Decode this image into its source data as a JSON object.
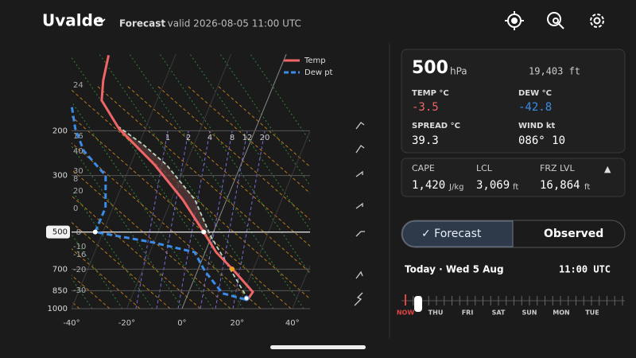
{
  "header": {
    "location": "Uvalde",
    "mode": "Forecast",
    "valid": "· valid 2026-08-05 11:00 UTC"
  },
  "chart_data": {
    "type": "skewt",
    "log_y": true,
    "xlim": [
      -40,
      46.4
    ],
    "ylim": [
      1000,
      100
    ],
    "xticks": [
      {
        "value": -40,
        "label": "-40°"
      },
      {
        "value": -20,
        "label": "-20°"
      },
      {
        "value": 0,
        "label": "0°"
      },
      {
        "value": 20,
        "label": "20°"
      },
      {
        "value": 40,
        "label": "40°"
      }
    ],
    "yticks": [
      1000,
      850,
      700,
      500,
      300,
      200
    ],
    "selected_level": 500,
    "mixing_ratio_labels": [
      "1",
      "2",
      "4",
      "8",
      "12",
      "20"
    ],
    "side_labels": [
      "24",
      "16",
      "40",
      "30",
      "8",
      "20",
      "0",
      "-8",
      "-10",
      "-16",
      "-20",
      "-30"
    ],
    "series": [
      {
        "name": "Temp",
        "color": "#f06565",
        "dash": false,
        "pressure": [
          917,
          860,
          713,
          600,
          500,
          373,
          272,
          196,
          152,
          127,
          101
        ],
        "values": [
          22.5,
          23.2,
          13.5,
          4.0,
          -3.5,
          -15.9,
          -31.3,
          -49.6,
          -60.0,
          -62.4,
          -64.2
        ]
      },
      {
        "name": "Dew pt",
        "color": "#3b8be8",
        "dash": true,
        "pressure": [
          920,
          870,
          713,
          600,
          547,
          500,
          401,
          300,
          240,
          196,
          158
        ],
        "values": [
          21.5,
          12.4,
          2.8,
          -3.8,
          -21.2,
          -42.8,
          -42.7,
          -47.4,
          -59.0,
          -65.4,
          -70.3
        ]
      }
    ],
    "parcel": {
      "color": "#b9d8c0",
      "pressure": [
        917,
        703,
        517,
        373,
        272,
        226,
        193
      ],
      "values": [
        22.5,
        11.8,
        -0.5,
        -11.5,
        -27.0,
        -38.6,
        -50.0
      ]
    }
  },
  "panel": {
    "level": "500",
    "level_unit": "hPa",
    "height": "19,403 ft",
    "temp_label": "TEMP °C",
    "temp": "-3.5",
    "dew_label": "DEW °C",
    "dew": "-42.8",
    "spread_label": "SPREAD °C",
    "spread": "39.3",
    "wind_label": "WIND kt",
    "wind": "086° 10"
  },
  "indices": {
    "cape_label": "CAPE",
    "cape": "1,420",
    "cape_unit": "J/kg",
    "lcl_label": "LCL",
    "lcl": "3,069",
    "lcl_unit": "ft",
    "frz_label": "FRZ LVL",
    "frz": "16,864",
    "frz_unit": "ft",
    "toggle": "▲"
  },
  "toggle": {
    "forecast": "✓  Forecast",
    "observed": "Observed"
  },
  "timeline": {
    "date": "Today · Wed 5 Aug",
    "time": "11:00  UTC",
    "days": [
      "NOW",
      "THU",
      "FRI",
      "SAT",
      "SUN",
      "MON",
      "TUE"
    ]
  }
}
